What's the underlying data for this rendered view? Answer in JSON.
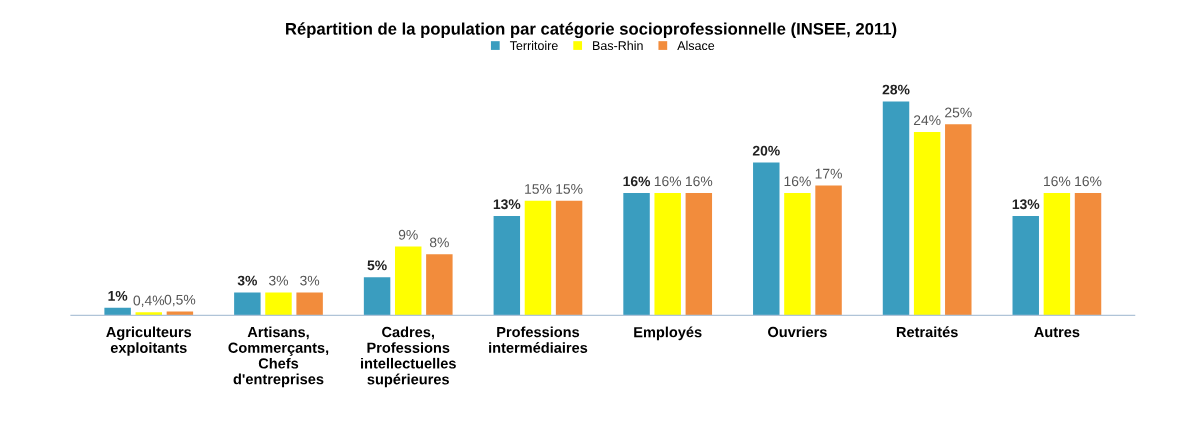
{
  "chart_data": {
    "type": "bar",
    "title": "Répartition de la population par catégorie socioprofessionnelle (INSEE, 2011)",
    "categories": [
      "Agriculteurs\nexploitants",
      "Artisans,\nCommerçants,\nChefs\nd'entreprises",
      "Cadres,\nProfessions\nintellectuelles\nsupérieures",
      "Professions\nintermédiaires",
      "Employés",
      "Ouvriers",
      "Retraités",
      "Autres"
    ],
    "series": [
      {
        "name": "Territoire",
        "color": "#3a9dbf",
        "values": [
          1,
          3,
          5,
          13,
          16,
          20,
          28,
          13
        ],
        "value_labels": [
          "1%",
          "3%",
          "5%",
          "13%",
          "16%",
          "20%",
          "28%",
          "13%"
        ]
      },
      {
        "name": "Bas-Rhin",
        "color": "#ffff00",
        "values": [
          0.4,
          3,
          9,
          15,
          16,
          16,
          24,
          16
        ],
        "value_labels": [
          "0,4%",
          "3%",
          "9%",
          "15%",
          "16%",
          "16%",
          "24%",
          "16%"
        ]
      },
      {
        "name": "Alsace",
        "color": "#f28c3c",
        "values": [
          0.5,
          3,
          8,
          15,
          16,
          17,
          25,
          16
        ],
        "value_labels": [
          "0,5%",
          "3%",
          "8%",
          "15%",
          "16%",
          "17%",
          "25%",
          "16%"
        ]
      }
    ],
    "legend": "top"
  }
}
